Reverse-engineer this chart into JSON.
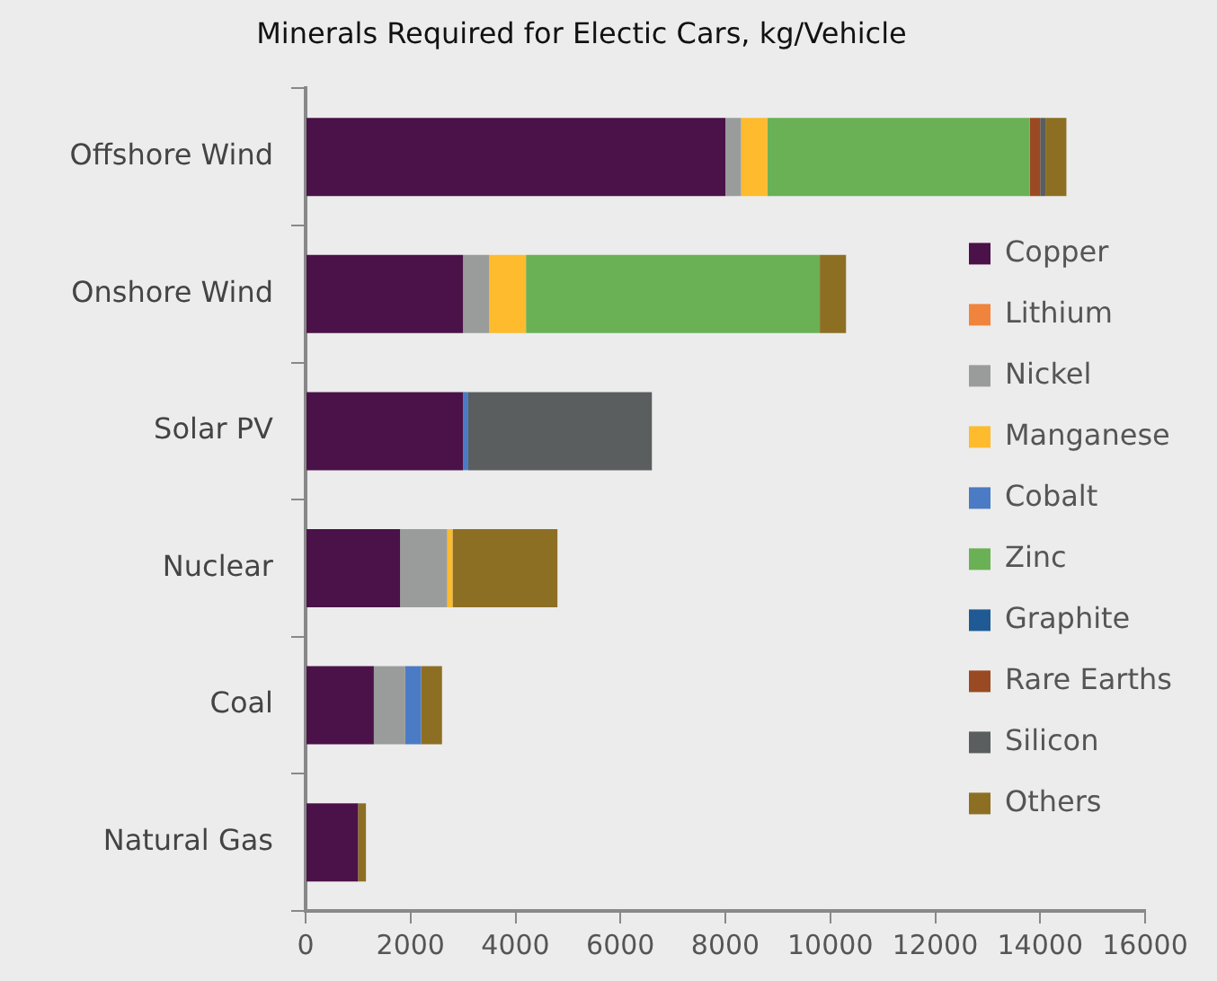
{
  "chart_data": {
    "type": "bar",
    "orientation": "horizontal",
    "stacked": true,
    "title": "Minerals Required for Electic Cars, kg/Vehicle",
    "categories": [
      "Offshore Wind",
      "Onshore Wind",
      "Solar PV",
      "Nuclear",
      "Coal",
      "Natural Gas"
    ],
    "series": [
      {
        "name": "Copper",
        "color": "#4a1248",
        "values": [
          8000,
          3000,
          3000,
          1800,
          1300,
          1000
        ]
      },
      {
        "name": "Lithium",
        "color": "#f0843c",
        "values": [
          0,
          0,
          0,
          0,
          0,
          0
        ]
      },
      {
        "name": "Nickel",
        "color": "#9a9c9c",
        "values": [
          300,
          500,
          0,
          900,
          600,
          null
        ]
      },
      {
        "name": "Manganese",
        "color": "#fdbb2d",
        "values": [
          500,
          700,
          0,
          100,
          0,
          0
        ]
      },
      {
        "name": "Cobalt",
        "color": "#4a7bc4",
        "values": [
          0,
          0,
          100,
          0,
          300,
          0
        ]
      },
      {
        "name": "Zinc",
        "color": "#6ab155",
        "values": [
          5000,
          5600,
          0,
          0,
          0,
          0
        ]
      },
      {
        "name": "Graphite",
        "color": "#1f5a94",
        "values": [
          0,
          0,
          0,
          0,
          0,
          0
        ]
      },
      {
        "name": "Rare Earths",
        "color": "#9a4a22",
        "values": [
          200,
          0,
          0,
          0,
          0,
          0
        ]
      },
      {
        "name": "Silicon",
        "color": "#5a5e5e",
        "values": [
          100,
          0,
          3500,
          0,
          0,
          0
        ]
      },
      {
        "name": "Others",
        "color": "#8d6f23",
        "values": [
          400,
          500,
          0,
          2000,
          400,
          150
        ]
      }
    ],
    "xlim": [
      0,
      16000
    ],
    "xticks": [
      0,
      2000,
      4000,
      6000,
      8000,
      10000,
      12000,
      14000,
      16000
    ],
    "grid": false,
    "legend": "right"
  }
}
